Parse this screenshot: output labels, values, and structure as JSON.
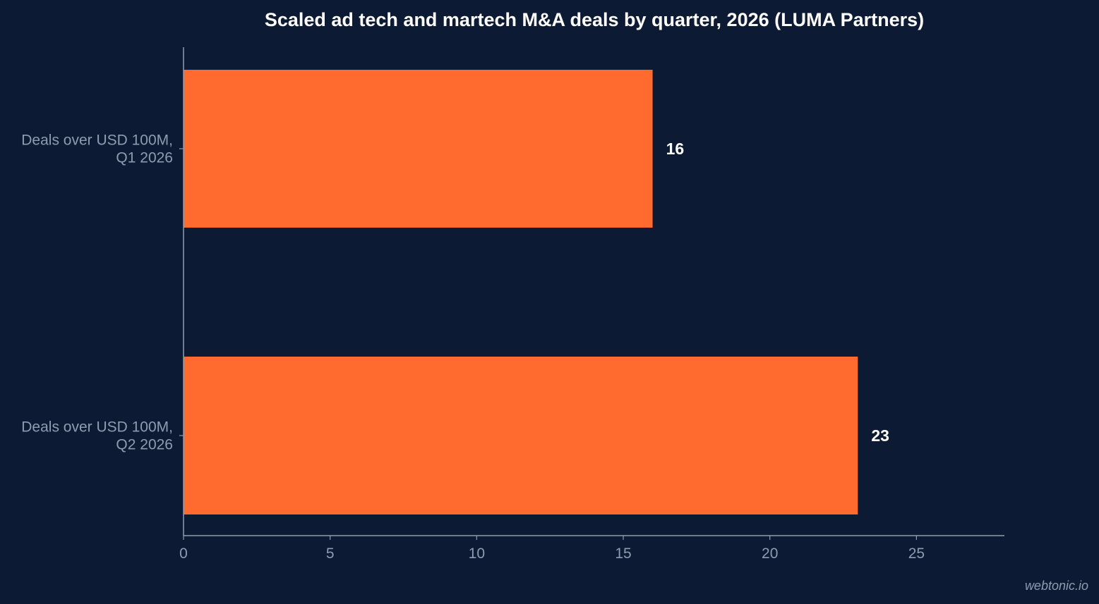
{
  "colors": {
    "background": "#0c1b33",
    "bar": "#ff6b2e",
    "axis": "#8e9bb0",
    "title": "#ffffff",
    "value_label": "#ffffff"
  },
  "watermark": "webtonic.io",
  "chart_data": {
    "type": "bar",
    "orientation": "horizontal",
    "title": "Scaled ad tech and martech M&A deals by quarter, 2026 (LUMA Partners)",
    "xlabel": "",
    "ylabel": "",
    "categories": [
      [
        "Deals over USD 100M,",
        "Q1 2026"
      ],
      [
        "Deals over USD 100M,",
        "Q2 2026"
      ]
    ],
    "values": [
      16,
      23
    ],
    "data_labels": [
      "16",
      "23"
    ],
    "xlim": [
      0,
      28
    ],
    "xticks": [
      0,
      5,
      10,
      15,
      20,
      25
    ],
    "grid": false,
    "legend": "none"
  }
}
